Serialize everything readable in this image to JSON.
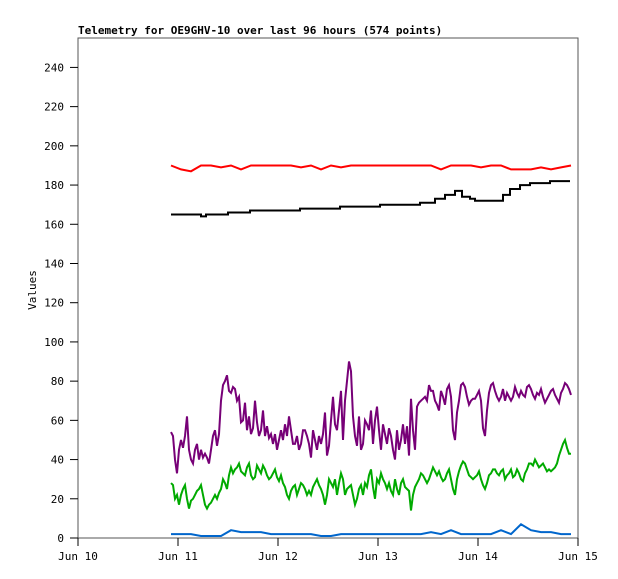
{
  "chart_data": {
    "type": "line",
    "title": "Telemetry for OE9GHV-10 over last 96 hours (574 points)",
    "xlabel": "",
    "ylabel": "Values",
    "ylim": [
      0,
      255
    ],
    "xlim": [
      0,
      5
    ],
    "x_units": "days since Jun 10",
    "yticks": [
      0,
      20,
      40,
      60,
      80,
      100,
      120,
      140,
      160,
      180,
      200,
      220,
      240
    ],
    "xticks": [
      {
        "value": 0,
        "label": "Jun 10"
      },
      {
        "value": 1,
        "label": "Jun 11"
      },
      {
        "value": 2,
        "label": "Jun 12"
      },
      {
        "value": 3,
        "label": "Jun 13"
      },
      {
        "value": 4,
        "label": "Jun 14"
      },
      {
        "value": 5,
        "label": "Jun 15"
      }
    ],
    "grid": false,
    "series": [
      {
        "name": "red",
        "color": "#ff0000",
        "x_start": 0.93,
        "x_step": 0.1,
        "values": [
          190,
          188,
          187,
          190,
          190,
          189,
          190,
          188,
          190,
          190,
          190,
          190,
          190,
          189,
          190,
          188,
          190,
          189,
          190,
          190,
          190,
          190,
          190,
          190,
          190,
          190,
          190,
          188,
          190,
          190,
          190,
          189,
          190,
          190,
          188,
          188,
          188,
          189,
          188,
          189,
          190
        ]
      },
      {
        "name": "black",
        "color": "#000000",
        "step": true,
        "points": [
          [
            0.93,
            165
          ],
          [
            1.22,
            165
          ],
          [
            1.23,
            164
          ],
          [
            1.27,
            164
          ],
          [
            1.28,
            165
          ],
          [
            1.5,
            166
          ],
          [
            1.72,
            167
          ],
          [
            2.22,
            168
          ],
          [
            2.62,
            169
          ],
          [
            3.02,
            170
          ],
          [
            3.32,
            170
          ],
          [
            3.42,
            171
          ],
          [
            3.57,
            173
          ],
          [
            3.67,
            175
          ],
          [
            3.77,
            177
          ],
          [
            3.82,
            177
          ],
          [
            3.84,
            174
          ],
          [
            3.92,
            173
          ],
          [
            3.97,
            172
          ],
          [
            4.22,
            172
          ],
          [
            4.25,
            175
          ],
          [
            4.32,
            178
          ],
          [
            4.42,
            180
          ],
          [
            4.52,
            181
          ],
          [
            4.72,
            182
          ],
          [
            4.92,
            182
          ]
        ]
      },
      {
        "name": "purple",
        "color": "#770077",
        "x_start": 0.93,
        "x_step": 0.02,
        "values": [
          54,
          52,
          40,
          33,
          45,
          50,
          46,
          52,
          62,
          45,
          40,
          38,
          45,
          48,
          40,
          45,
          41,
          43,
          41,
          38,
          45,
          52,
          55,
          47,
          53,
          70,
          78,
          80,
          83,
          75,
          74,
          77,
          76,
          70,
          72,
          59,
          60,
          69,
          55,
          62,
          53,
          56,
          70,
          59,
          52,
          55,
          65,
          52,
          57,
          51,
          53,
          48,
          53,
          45,
          50,
          55,
          50,
          58,
          52,
          62,
          55,
          48,
          48,
          52,
          45,
          48,
          55,
          55,
          52,
          48,
          41,
          55,
          50,
          45,
          52,
          48,
          53,
          64,
          42,
          47,
          60,
          72,
          58,
          55,
          65,
          75,
          50,
          70,
          80,
          90,
          85,
          62,
          52,
          47,
          62,
          45,
          48,
          60,
          58,
          55,
          65,
          48,
          60,
          67,
          55,
          45,
          58,
          53,
          48,
          56,
          52,
          45,
          40,
          55,
          45,
          50,
          58,
          48,
          57,
          42,
          71,
          55,
          45,
          67,
          69,
          70,
          71,
          72,
          70,
          78,
          75,
          75,
          70,
          68,
          65,
          75,
          72,
          68,
          76,
          78,
          72,
          55,
          50,
          64,
          70,
          78,
          79,
          77,
          72,
          68,
          70,
          71,
          71,
          73,
          75,
          70,
          56,
          52,
          65,
          74,
          78,
          79,
          75,
          72,
          70,
          72,
          76,
          70,
          74,
          72,
          70,
          72,
          77,
          74,
          72,
          75,
          73,
          72,
          77,
          78,
          76,
          73,
          71,
          74,
          73,
          76,
          72,
          69,
          71,
          73,
          75,
          76,
          73,
          71,
          69,
          74,
          76,
          79,
          78,
          76,
          73
        ]
      },
      {
        "name": "green",
        "color": "#00aa00",
        "x_start": 0.93,
        "x_step": 0.02,
        "values": [
          28,
          27,
          20,
          22,
          17,
          22,
          25,
          27,
          20,
          15,
          19,
          20,
          22,
          24,
          25,
          27,
          22,
          17,
          15,
          17,
          18,
          20,
          22,
          20,
          23,
          25,
          30,
          28,
          25,
          32,
          36,
          33,
          35,
          36,
          38,
          34,
          33,
          32,
          36,
          38,
          32,
          30,
          31,
          37,
          35,
          33,
          37,
          35,
          32,
          30,
          31,
          33,
          35,
          31,
          29,
          32,
          28,
          26,
          22,
          20,
          24,
          26,
          27,
          22,
          25,
          28,
          27,
          25,
          22,
          24,
          22,
          26,
          28,
          30,
          27,
          25,
          22,
          17,
          22,
          30,
          28,
          26,
          30,
          22,
          28,
          33,
          30,
          22,
          25,
          26,
          27,
          22,
          17,
          20,
          25,
          27,
          22,
          28,
          26,
          32,
          35,
          26,
          20,
          30,
          28,
          33,
          30,
          28,
          25,
          28,
          24,
          22,
          30,
          25,
          22,
          28,
          30,
          26,
          25,
          24,
          14,
          22,
          26,
          28,
          30,
          33,
          32,
          30,
          28,
          30,
          33,
          36,
          34,
          32,
          34,
          31,
          29,
          30,
          33,
          35,
          30,
          25,
          22,
          30,
          34,
          37,
          39,
          38,
          35,
          32,
          31,
          30,
          31,
          32,
          34,
          30,
          27,
          25,
          28,
          32,
          33,
          35,
          35,
          33,
          32,
          34,
          35,
          30,
          32,
          33,
          35,
          31,
          32,
          35,
          33,
          30,
          29,
          33,
          35,
          38,
          38,
          37,
          40,
          38,
          36,
          37,
          38,
          36,
          34,
          35,
          34,
          35,
          36,
          38,
          42,
          45,
          48,
          50,
          46,
          43,
          43
        ]
      },
      {
        "name": "blue",
        "color": "#0066cc",
        "x_start": 0.93,
        "x_step": 0.1,
        "values": [
          2,
          2,
          2,
          1,
          1,
          1,
          4,
          3,
          3,
          3,
          2,
          2,
          2,
          2,
          2,
          1,
          1,
          2,
          2,
          2,
          2,
          2,
          2,
          2,
          2,
          2,
          3,
          2,
          4,
          2,
          2,
          2,
          2,
          4,
          2,
          7,
          4,
          3,
          3,
          2,
          2
        ]
      }
    ]
  }
}
